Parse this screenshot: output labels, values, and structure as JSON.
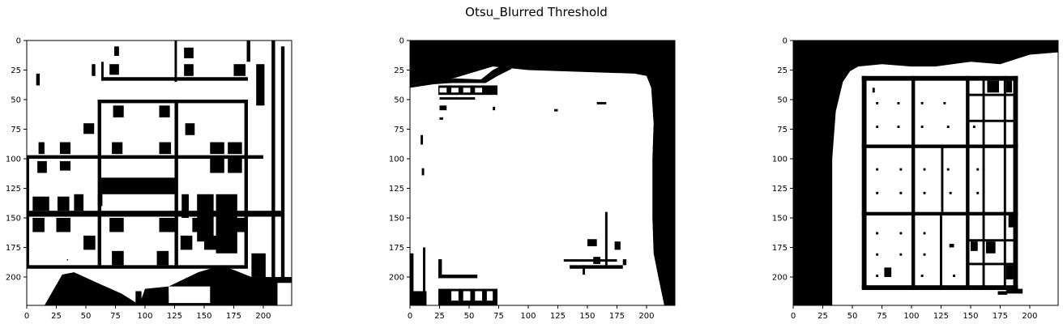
{
  "figure": {
    "suptitle": "Otsu_Blurred Threshold"
  },
  "chart_data": [
    {
      "type": "image",
      "cmap": "binary",
      "xlim": [
        0,
        224
      ],
      "ylim": [
        224,
        0
      ],
      "xticks": [
        0,
        25,
        50,
        75,
        100,
        125,
        150,
        175,
        200
      ],
      "yticks": [
        0,
        25,
        50,
        75,
        100,
        125,
        150,
        175,
        200
      ],
      "grid": false,
      "content": "thresholded sudoku photo: grid lines and digits in black on white, partial grid, dark blob bottom-left"
    },
    {
      "type": "image",
      "cmap": "binary",
      "xlim": [
        0,
        224
      ],
      "ylim": [
        224,
        0
      ],
      "xticks": [
        0,
        25,
        50,
        75,
        100,
        125,
        150,
        175,
        200
      ],
      "yticks": [
        0,
        25,
        50,
        75,
        100,
        125,
        150,
        175,
        200
      ],
      "grid": false,
      "content": "thresholded photo: mostly white region with black top band and right border, faint digits"
    },
    {
      "type": "image",
      "cmap": "binary",
      "xlim": [
        0,
        224
      ],
      "ylim": [
        224,
        0
      ],
      "xticks": [
        0,
        25,
        50,
        75,
        100,
        125,
        150,
        175,
        200
      ],
      "yticks": [
        0,
        25,
        50,
        75,
        100,
        125,
        150,
        175,
        200
      ],
      "grid": false,
      "content": "thresholded sudoku: black left band, clear 9x9 grid with thick 3x3 box lines and sparse digits"
    }
  ]
}
